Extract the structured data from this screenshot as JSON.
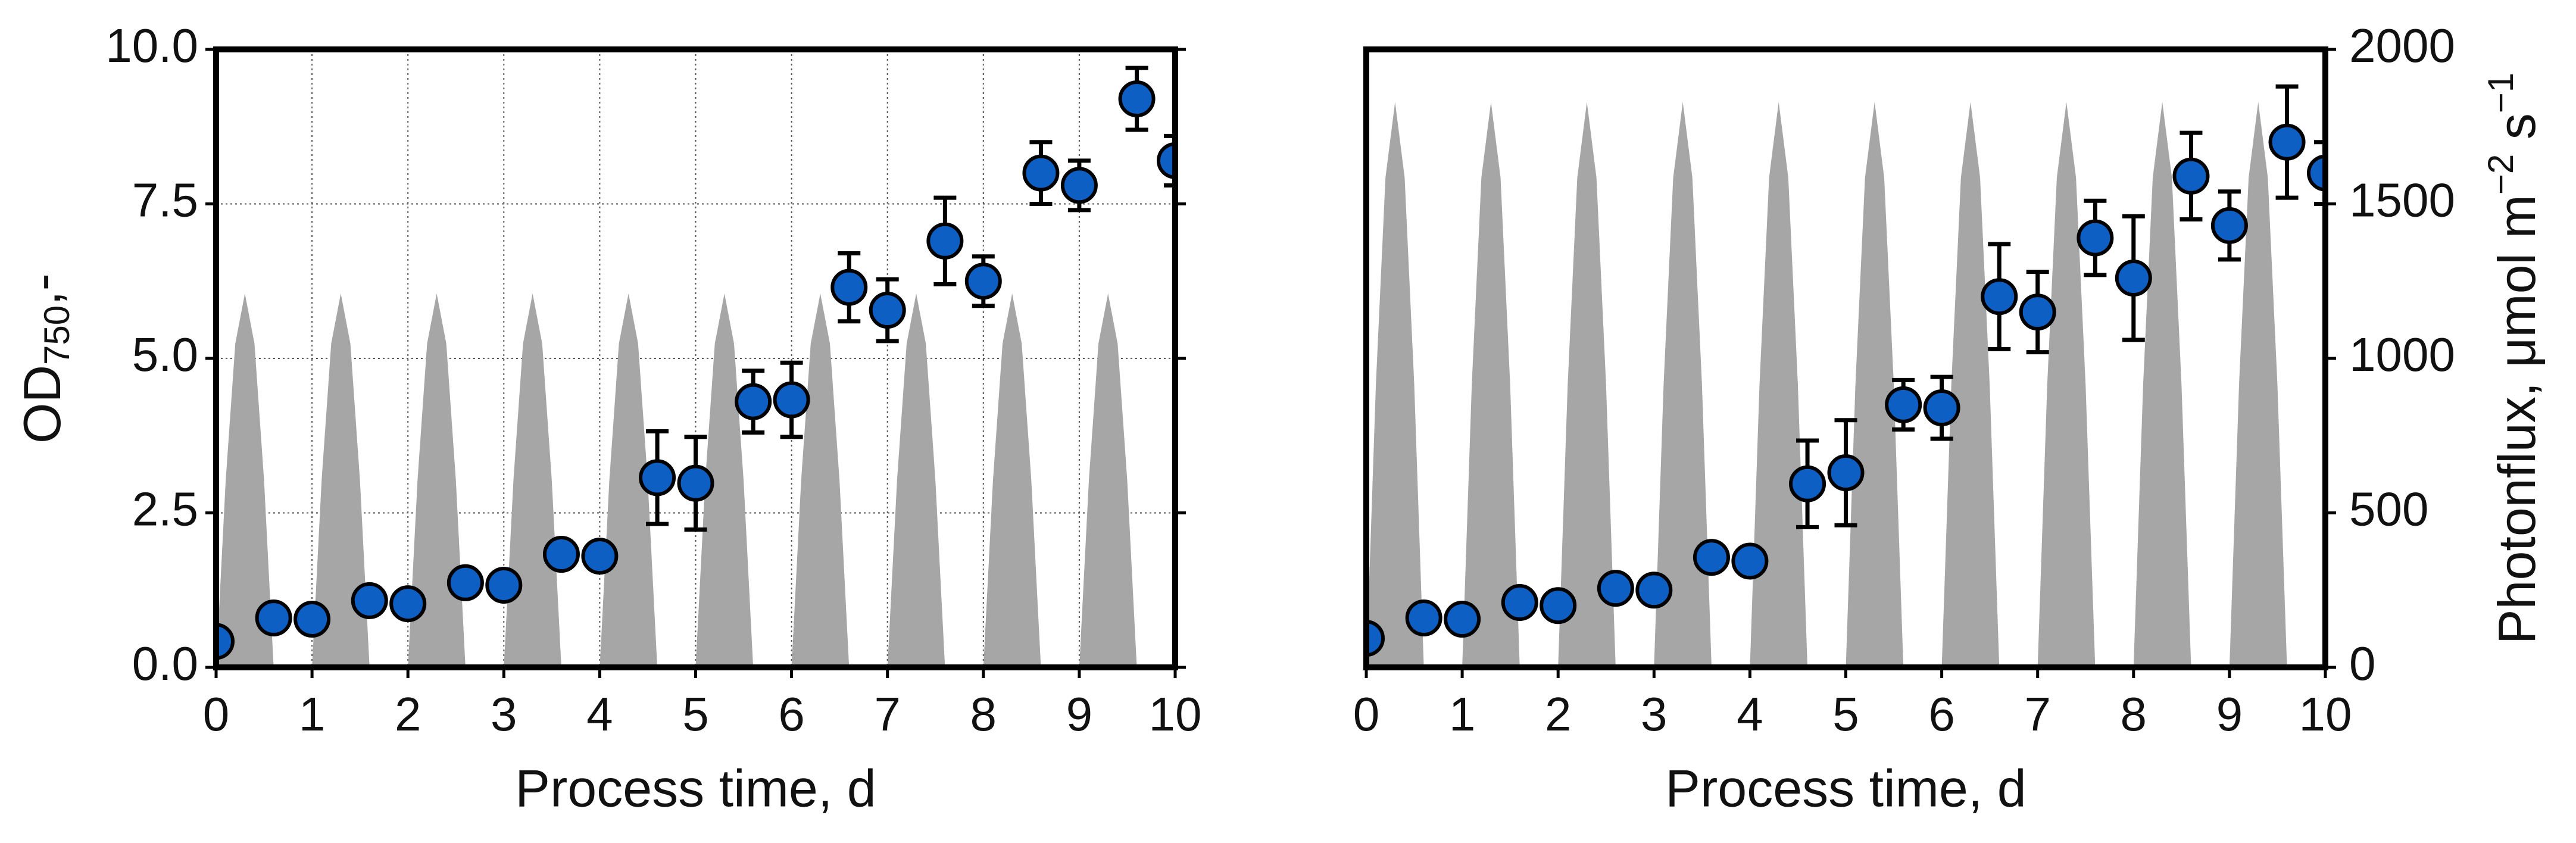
{
  "chart_data": [
    {
      "type": "scatter",
      "xlabel": "Process time, d",
      "ylabel": {
        "main": "OD",
        "sub": "750",
        "tail": ",-"
      },
      "xlim": [
        0,
        10
      ],
      "xticks": [
        0,
        1,
        2,
        3,
        4,
        5,
        6,
        7,
        8,
        9,
        10
      ],
      "ylim": [
        0,
        10
      ],
      "yticks": [
        {
          "value": 0,
          "label": "0.0"
        },
        {
          "value": 2.5,
          "label": "2.5"
        },
        {
          "value": 5,
          "label": "5.0"
        },
        {
          "value": 7.5,
          "label": "7.5"
        },
        {
          "value": 10,
          "label": "10.0"
        }
      ],
      "y2lim": [
        0,
        2000
      ],
      "grid": true,
      "series": [
        {
          "type": "area",
          "axis": "y2",
          "color": "#a6a6a6",
          "x": [
            0,
            0.1,
            0.2,
            0.3,
            0.4,
            0.5,
            0.6,
            1,
            1.1,
            1.2,
            1.3,
            1.4,
            1.5,
            1.6,
            2,
            2.1,
            2.2,
            2.3,
            2.4,
            2.5,
            2.6,
            3,
            3.1,
            3.2,
            3.3,
            3.4,
            3.5,
            3.6,
            4,
            4.1,
            4.2,
            4.3,
            4.4,
            4.5,
            4.6,
            5,
            5.1,
            5.2,
            5.3,
            5.4,
            5.5,
            5.6,
            6,
            6.1,
            6.2,
            6.3,
            6.4,
            6.5,
            6.6,
            7,
            7.1,
            7.2,
            7.3,
            7.4,
            7.5,
            7.6,
            8,
            8.1,
            8.2,
            8.3,
            8.4,
            8.5,
            8.6,
            9,
            9.1,
            9.2,
            9.3,
            9.4,
            9.5,
            9.6
          ],
          "values": [
            0,
            605,
            1048,
            1210,
            1048,
            605,
            0,
            0,
            605,
            1048,
            1210,
            1048,
            605,
            0,
            0,
            605,
            1048,
            1210,
            1048,
            605,
            0,
            0,
            605,
            1048,
            1210,
            1048,
            605,
            0,
            0,
            605,
            1048,
            1210,
            1048,
            605,
            0,
            0,
            605,
            1048,
            1210,
            1048,
            605,
            0,
            0,
            605,
            1048,
            1210,
            1048,
            605,
            0,
            0,
            605,
            1048,
            1210,
            1048,
            605,
            0,
            0,
            605,
            1048,
            1210,
            1048,
            605,
            0,
            0,
            605,
            1048,
            1210,
            1048,
            605,
            0
          ]
        },
        {
          "type": "scatter",
          "color": "#0e5fc4",
          "x": [
            0,
            0.6,
            1,
            1.6,
            2,
            2.6,
            3,
            3.6,
            4,
            4.6,
            5,
            5.6,
            6,
            6.6,
            7,
            7.6,
            8,
            8.6,
            9,
            9.6,
            10
          ],
          "values": [
            0.42,
            0.8,
            0.78,
            1.08,
            1.03,
            1.37,
            1.33,
            1.83,
            1.8,
            3.07,
            2.98,
            4.3,
            4.33,
            6.15,
            5.78,
            6.9,
            6.25,
            8.0,
            7.8,
            9.2,
            8.2
          ],
          "errors": [
            0.1,
            0.1,
            0.1,
            0.1,
            0.1,
            0.1,
            0.1,
            0.2,
            0.2,
            0.75,
            0.75,
            0.5,
            0.6,
            0.55,
            0.5,
            0.7,
            0.4,
            0.5,
            0.4,
            0.5,
            0.4
          ]
        }
      ]
    },
    {
      "type": "scatter",
      "xlabel": "Process time, d",
      "y2label": [
        "Photonflux, μmol m",
        "−2",
        " s",
        "−1"
      ],
      "xlim": [
        0,
        10
      ],
      "xticks": [
        0,
        1,
        2,
        3,
        4,
        5,
        6,
        7,
        8,
        9,
        10
      ],
      "ylim": [
        0,
        10
      ],
      "y2lim": [
        0,
        2000
      ],
      "y2ticks": [
        0,
        500,
        1000,
        1500,
        2000
      ],
      "grid": false,
      "series": [
        {
          "type": "area",
          "axis": "y2",
          "color": "#a6a6a6",
          "x": [
            0,
            0.1,
            0.2,
            0.3,
            0.4,
            0.5,
            0.6,
            1,
            1.1,
            1.2,
            1.3,
            1.4,
            1.5,
            1.6,
            2,
            2.1,
            2.2,
            2.3,
            2.4,
            2.5,
            2.6,
            3,
            3.1,
            3.2,
            3.3,
            3.4,
            3.5,
            3.6,
            4,
            4.1,
            4.2,
            4.3,
            4.4,
            4.5,
            4.6,
            5,
            5.1,
            5.2,
            5.3,
            5.4,
            5.5,
            5.6,
            6,
            6.1,
            6.2,
            6.3,
            6.4,
            6.5,
            6.6,
            7,
            7.1,
            7.2,
            7.3,
            7.4,
            7.5,
            7.6,
            8,
            8.1,
            8.2,
            8.3,
            8.4,
            8.5,
            8.6,
            9,
            9.1,
            9.2,
            9.3,
            9.4,
            9.5,
            9.6
          ],
          "values": [
            0,
            915,
            1585,
            1830,
            1585,
            915,
            0,
            0,
            915,
            1585,
            1830,
            1585,
            915,
            0,
            0,
            915,
            1585,
            1830,
            1585,
            915,
            0,
            0,
            915,
            1585,
            1830,
            1585,
            915,
            0,
            0,
            915,
            1585,
            1830,
            1585,
            915,
            0,
            0,
            915,
            1585,
            1830,
            1585,
            915,
            0,
            0,
            915,
            1585,
            1830,
            1585,
            915,
            0,
            0,
            915,
            1585,
            1830,
            1585,
            915,
            0,
            0,
            915,
            1585,
            1830,
            1585,
            915,
            0,
            0,
            915,
            1585,
            1830,
            1585,
            915,
            0
          ]
        },
        {
          "type": "scatter",
          "color": "#0e5fc4",
          "x": [
            0,
            0.6,
            1,
            1.6,
            2,
            2.6,
            3,
            3.6,
            4,
            4.6,
            5,
            5.6,
            6,
            6.6,
            7,
            7.6,
            8,
            8.6,
            9,
            9.6,
            10
          ],
          "values": [
            0.47,
            0.8,
            0.78,
            1.05,
            1.0,
            1.28,
            1.25,
            1.78,
            1.72,
            2.97,
            3.15,
            4.25,
            4.2,
            6.0,
            5.75,
            6.95,
            6.3,
            7.95,
            7.15,
            8.5,
            8.0
          ],
          "errors": [
            0.1,
            0.1,
            0.1,
            0.1,
            0.1,
            0.1,
            0.1,
            0.15,
            0.15,
            0.7,
            0.85,
            0.4,
            0.5,
            0.85,
            0.65,
            0.6,
            1.0,
            0.7,
            0.55,
            0.9,
            0.5
          ]
        }
      ]
    }
  ]
}
